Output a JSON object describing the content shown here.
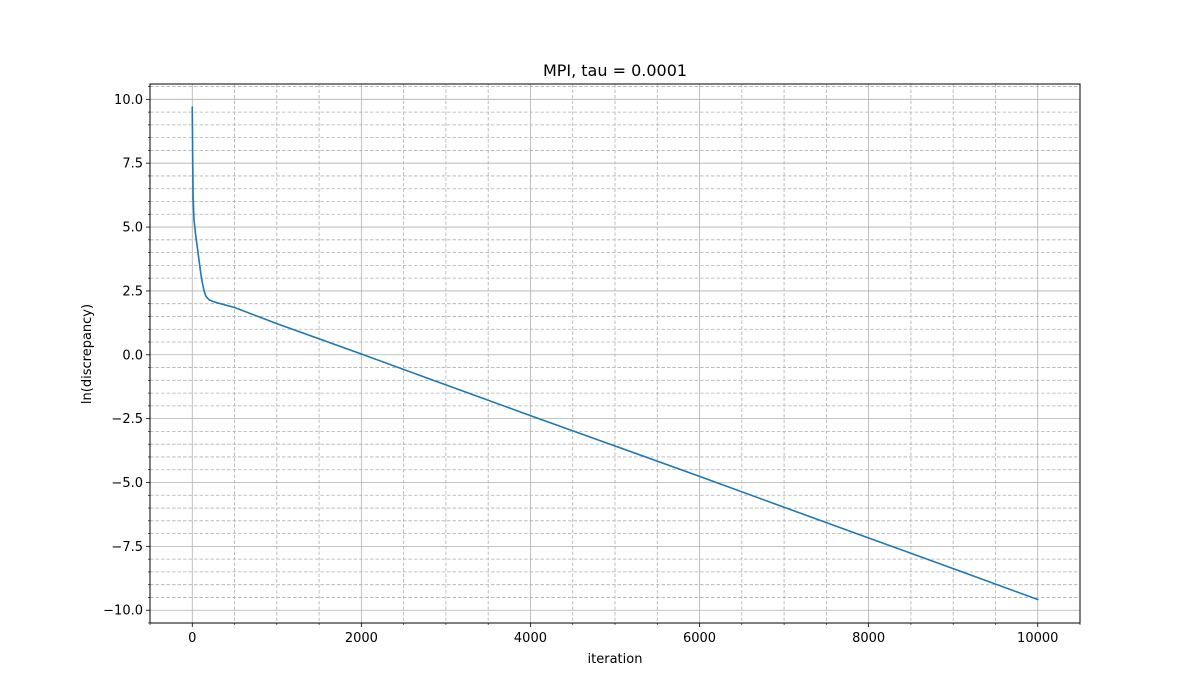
{
  "chart_data": {
    "type": "line",
    "title": "MPI, tau = 0.0001",
    "xlabel": "iteration",
    "ylabel": "ln(discrepancy)",
    "xlim": [
      -500,
      10500
    ],
    "ylim": [
      -10.5,
      10.6
    ],
    "xticks": [
      0,
      2000,
      4000,
      6000,
      8000,
      10000
    ],
    "xtick_labels": [
      "0",
      "2000",
      "4000",
      "6000",
      "8000",
      "10000"
    ],
    "xminor_step": 500,
    "yticks": [
      -10.0,
      -7.5,
      -5.0,
      -2.5,
      0.0,
      2.5,
      5.0,
      7.5,
      10.0
    ],
    "ytick_labels": [
      "−10.0",
      "−7.5",
      "−5.0",
      "−2.5",
      "0.0",
      "2.5",
      "5.0",
      "7.5",
      "10.0"
    ],
    "yminor_step": 0.5,
    "grid": {
      "major": true,
      "minor": true,
      "minor_style": "dashed"
    },
    "line_color": "#1f77b4",
    "series": [
      {
        "x": [
          0,
          5,
          10,
          20,
          30,
          40,
          60,
          80,
          100,
          120,
          140,
          160,
          180,
          200,
          250,
          300,
          500,
          1000,
          2000,
          3000,
          4000,
          5000,
          6000,
          7000,
          8000,
          9000,
          10000
        ],
        "y": [
          9.7,
          7.6,
          6.2,
          5.3,
          5.0,
          4.7,
          4.2,
          3.7,
          3.2,
          2.8,
          2.5,
          2.3,
          2.22,
          2.15,
          2.08,
          2.03,
          1.85,
          1.22,
          0.03,
          -1.18,
          -2.38,
          -3.57,
          -4.76,
          -5.97,
          -7.17,
          -8.37,
          -9.58
        ]
      }
    ]
  }
}
